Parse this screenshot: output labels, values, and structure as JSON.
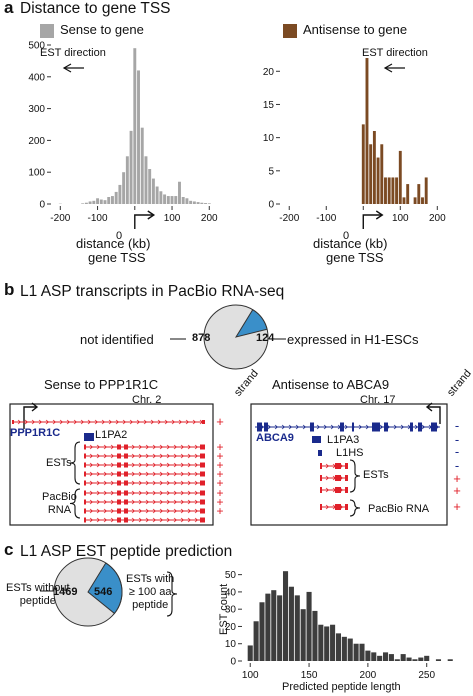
{
  "panel_a": {
    "letter": "a",
    "title": "Distance to gene TSS",
    "left_legend": "Sense to gene",
    "right_legend": "Antisense to gene",
    "est_direction": "EST direction",
    "xlabel_line1": "distance (kb)",
    "xlabel_line2": "gene TSS",
    "zero_label": "0"
  },
  "panel_b": {
    "letter": "b",
    "title": "L1 ASP transcripts in PacBio RNA-seq",
    "pie_left_label": "not identified",
    "pie_right_label": "expressed in H1-ESCs",
    "pie_left_value": "878",
    "pie_right_value": "124",
    "left_box": {
      "title": "Sense to PPP1R1C",
      "chr": "Chr. 2",
      "gene": "PPP1R1C",
      "l1": "L1PA2",
      "ests": "ESTs",
      "pacbio": "PacBio\nRNA",
      "strand": "strand",
      "strands": [
        "+",
        "+",
        "+",
        "+",
        "+",
        "+",
        "+",
        "+",
        "+"
      ]
    },
    "right_box": {
      "title": "Antisense to ABCA9",
      "chr": "Chr. 17",
      "gene": "ABCA9",
      "l1a": "L1PA3",
      "l1b": "L1HS",
      "ests": "ESTs",
      "pacbio": "PacBio RNA",
      "strand": "strand",
      "strands": [
        "-",
        "-",
        "-",
        "-",
        "+",
        "+",
        "+"
      ]
    }
  },
  "panel_c": {
    "letter": "c",
    "title": "L1 ASP EST peptide prediction",
    "pie_left_label": "ESTs without\npeptide",
    "pie_right_label": "ESTs with\n≥ 100 aa\npeptide",
    "pie_left_value": "1469",
    "pie_right_value": "546"
  },
  "colors": {
    "grey_bar": "#a6a6a6",
    "brown_bar": "#7b4a23",
    "dark_bar": "#3d3d3d",
    "pie_grey": "#e0e0e0",
    "pie_blue": "#3a8fc9",
    "red_track": "#e0202a",
    "blue_track": "#1a2a8c"
  },
  "chart_data": [
    {
      "type": "bar",
      "series": [
        {
          "name": "Sense to gene",
          "x": [
            -200,
            -190,
            -180,
            -170,
            -160,
            -150,
            -140,
            -130,
            -120,
            -110,
            -100,
            -90,
            -80,
            -70,
            -60,
            -50,
            -40,
            -30,
            -20,
            -10,
            0,
            10,
            20,
            30,
            40,
            50,
            60,
            70,
            80,
            90,
            100,
            110,
            120,
            130,
            140,
            150,
            160,
            170,
            180,
            190,
            200
          ],
          "values": [
            1,
            0,
            0,
            0,
            0,
            0,
            2,
            4,
            8,
            10,
            18,
            14,
            12,
            22,
            25,
            38,
            60,
            100,
            150,
            230,
            490,
            420,
            240,
            150,
            110,
            80,
            55,
            40,
            30,
            25,
            25,
            25,
            70,
            22,
            18,
            10,
            8,
            6,
            4,
            3,
            2
          ]
        }
      ],
      "xlim": [
        -225,
        210
      ],
      "ylim": [
        0,
        500
      ],
      "xticks": [
        -200,
        -100,
        0,
        100,
        200
      ],
      "yticks": [
        0,
        100,
        200,
        300,
        400,
        500
      ]
    },
    {
      "type": "bar",
      "series": [
        {
          "name": "Antisense to gene",
          "x": [
            0,
            10,
            20,
            30,
            40,
            50,
            60,
            70,
            80,
            90,
            100,
            110,
            120,
            130,
            140,
            150,
            160,
            170
          ],
          "values": [
            12,
            22,
            9,
            11,
            7,
            9,
            4,
            4,
            4,
            4,
            8,
            1,
            3,
            0,
            1,
            3,
            1,
            4
          ]
        }
      ],
      "xlim": [
        -225,
        210
      ],
      "ylim": [
        0,
        22
      ],
      "xticks": [
        -200,
        -100,
        0,
        100,
        200
      ],
      "yticks": [
        0,
        5,
        10,
        15,
        20
      ]
    },
    {
      "type": "bar",
      "xlabel": "Predicted peptide length",
      "ylabel": "EST count",
      "x": [
        100,
        105,
        110,
        115,
        120,
        125,
        130,
        135,
        140,
        145,
        150,
        155,
        160,
        165,
        170,
        175,
        180,
        185,
        190,
        195,
        200,
        205,
        210,
        215,
        220,
        225,
        230,
        235,
        240,
        245,
        250,
        255,
        260,
        265,
        270
      ],
      "values": [
        9,
        23,
        34,
        39,
        41,
        38,
        52,
        43,
        38,
        30,
        40,
        29,
        21,
        20,
        21,
        16,
        14,
        13,
        10,
        10,
        6,
        5,
        3,
        5,
        4,
        1,
        4,
        2,
        1,
        2,
        3,
        0,
        1,
        0,
        1
      ],
      "xlim": [
        93,
        280
      ],
      "ylim": [
        0,
        55
      ],
      "xticks": [
        100,
        150,
        200,
        250
      ],
      "yticks": [
        0,
        10,
        20,
        30,
        40,
        50
      ]
    },
    {
      "type": "pie",
      "categories": [
        "not identified",
        "expressed in H1-ESCs"
      ],
      "values": [
        878,
        124
      ]
    },
    {
      "type": "pie",
      "categories": [
        "ESTs without peptide",
        "ESTs with ≥ 100 aa peptide"
      ],
      "values": [
        1469,
        546
      ]
    }
  ]
}
